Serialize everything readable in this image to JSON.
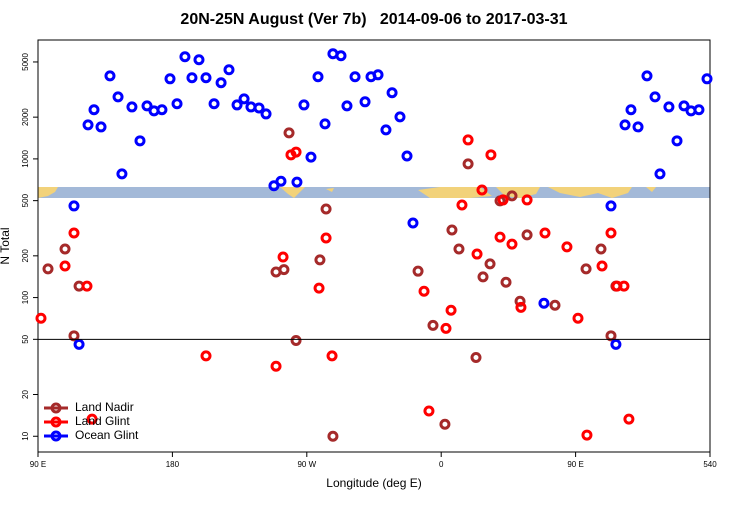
{
  "chart_data": {
    "type": "scatter",
    "title": "20N-25N August (Ver 7b)   2014-09-06 to 2017-03-31",
    "x_label": "Longitude (deg E)",
    "y_label": "N Total",
    "log_y": true,
    "legend": "bottom-left",
    "hline": 50,
    "xlim": [
      90,
      540
    ],
    "xticks": [
      {
        "value": 90,
        "label": "90 E"
      },
      180,
      {
        "value": 270,
        "label": "90 W"
      },
      {
        "value": 360,
        "label": "0"
      },
      {
        "value": 450,
        "label": "90 E"
      },
      540
    ],
    "ylim": [
      7.7,
      7200
    ],
    "yticks": [
      10,
      20,
      50,
      100,
      200,
      500,
      1000,
      2000,
      5000
    ],
    "series": [
      {
        "name": "Land Nadir",
        "color": "#a52a2a",
        "x": [
          96.7,
          108.1,
          114.1,
          117.5,
          249.4,
          254.7,
          258.1,
          262.8,
          278.8,
          282.9,
          287.5,
          344.5,
          354.5,
          362.5,
          367.2,
          371.9,
          378,
          383.3,
          388,
          392.7,
          399.4,
          403.4,
          407.4,
          412.8,
          417.5,
          436.2,
          457,
          467,
          473.7,
          477
        ],
        "values": [
          161,
          224,
          53,
          121,
          153,
          159,
          1540,
          49,
          187,
          435,
          10,
          155,
          63,
          12.2,
          307,
          224,
          920,
          37,
          141,
          175,
          498,
          129,
          541,
          94,
          283,
          88,
          161,
          224,
          53,
          121
        ]
      },
      {
        "name": "Land Glint",
        "color": "#ff0000",
        "x": [
          92,
          108.1,
          114.1,
          122.8,
          126.2,
          202.5,
          249.4,
          254.1,
          259.4,
          262.8,
          278.2,
          282.9,
          286.9,
          348.5,
          351.8,
          363.2,
          366.6,
          373.9,
          378,
          384,
          387.3,
          393.3,
          399.4,
          401.4,
          407.4,
          413.4,
          417.5,
          429.5,
          444.2,
          451.6,
          457.6,
          467.7,
          473.7,
          477.7,
          482.4,
          485.7
        ],
        "values": [
          71,
          169,
          292,
          121,
          13.3,
          38,
          32,
          196,
          1070,
          1120,
          117,
          269,
          38,
          111,
          15.2,
          60,
          81,
          465,
          1370,
          206,
          597,
          1070,
          273,
          506,
          243,
          85,
          506,
          292,
          232,
          71,
          10.2,
          169,
          292,
          121,
          121,
          13.3
        ]
      },
      {
        "name": "Ocean Glint",
        "color": "#0000ff",
        "x": [
          114.1,
          117.5,
          123.5,
          127.5,
          132.2,
          138.2,
          143.6,
          146.2,
          152.9,
          158.3,
          163,
          167.7,
          173,
          178.4,
          183.1,
          188.4,
          193.1,
          197.8,
          202.5,
          207.9,
          212.6,
          217.9,
          223.3,
          228,
          232.6,
          238,
          242.7,
          248,
          252.7,
          263.4,
          268.1,
          272.8,
          277.5,
          282.2,
          287.5,
          292.9,
          296.9,
          302.3,
          309,
          313,
          317.7,
          323,
          327.1,
          332.4,
          337.1,
          341.1,
          428.8,
          473.7,
          477,
          483.1,
          487.1,
          491.8,
          497.8,
          503.2,
          506.5,
          512.5,
          517.9,
          522.6,
          527.3,
          532.6,
          538
        ],
        "values": [
          458,
          46,
          1760,
          2260,
          1700,
          3970,
          2800,
          780,
          2370,
          1350,
          2410,
          2220,
          2260,
          3780,
          2500,
          5450,
          3850,
          5190,
          3850,
          2500,
          3540,
          4390,
          2450,
          2710,
          2370,
          2330,
          2110,
          640,
          690,
          680,
          2450,
          1030,
          3910,
          1790,
          5730,
          5540,
          2410,
          3910,
          2580,
          3910,
          4040,
          1620,
          3000,
          2010,
          1050,
          345,
          91,
          458,
          46,
          1760,
          2260,
          1700,
          3970,
          2800,
          780,
          2370,
          1350,
          2410,
          2220,
          2260,
          3780
        ]
      }
    ]
  }
}
